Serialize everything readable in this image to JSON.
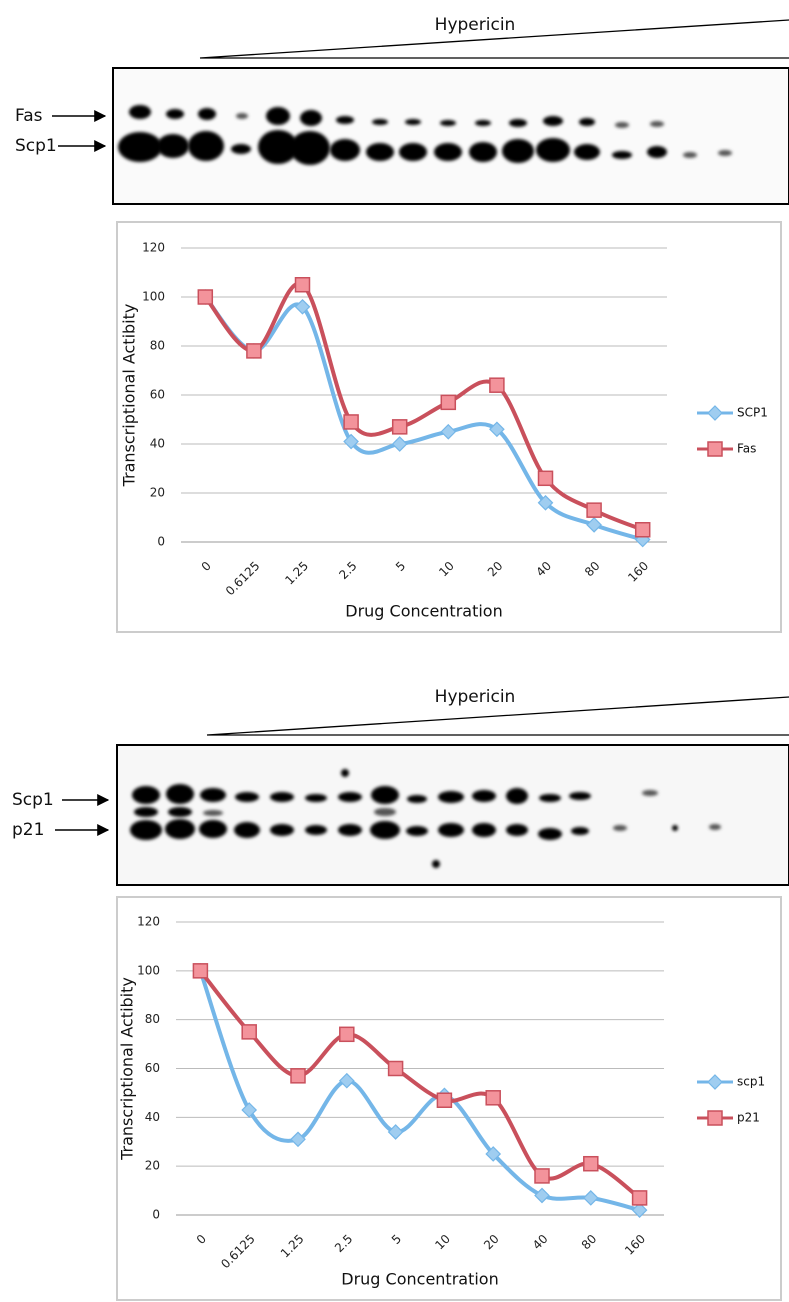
{
  "gels": [
    {
      "treatment": "Hypericin",
      "bands": [
        "Fas",
        "Scp1"
      ]
    },
    {
      "treatment": "Hypericin",
      "bands": [
        "Scp1",
        "p21"
      ]
    }
  ],
  "chart_data": [
    {
      "type": "line",
      "x_label": "Drug Concentration",
      "y_label": "Transcriptional Actibity",
      "categories": [
        "0",
        "0.6125",
        "1.25",
        "2.5",
        "5",
        "10",
        "20",
        "40",
        "80",
        "160"
      ],
      "series": [
        {
          "name": "SCP1",
          "color": "#74b6e8",
          "marker": "diamond",
          "values": [
            100,
            78,
            96,
            41,
            40,
            45,
            46,
            16,
            7,
            1
          ]
        },
        {
          "name": "Fas",
          "color": "#c9505c",
          "marker": "square",
          "values": [
            100,
            78,
            105,
            49,
            47,
            57,
            64,
            26,
            13,
            5
          ]
        }
      ],
      "ylim": [
        0,
        120
      ],
      "yticks": [
        0,
        20,
        40,
        60,
        80,
        100,
        120
      ],
      "grid": true,
      "legend": "right"
    },
    {
      "type": "line",
      "x_label": "Drug Concentration",
      "y_label": "Transcriptional Actibity",
      "categories": [
        "0",
        "0.6125",
        "1.25",
        "2.5",
        "5",
        "10",
        "20",
        "40",
        "80",
        "160"
      ],
      "series": [
        {
          "name": "scp1",
          "color": "#74b6e8",
          "marker": "diamond",
          "values": [
            100,
            43,
            31,
            55,
            34,
            49,
            25,
            8,
            7,
            2
          ]
        },
        {
          "name": "p21",
          "color": "#c9505c",
          "marker": "square",
          "values": [
            100,
            75,
            57,
            74,
            60,
            47,
            48,
            16,
            21,
            7
          ]
        }
      ],
      "ylim": [
        0,
        120
      ],
      "yticks": [
        0,
        20,
        40,
        60,
        80,
        100,
        120
      ],
      "grid": true,
      "legend": "right"
    }
  ]
}
